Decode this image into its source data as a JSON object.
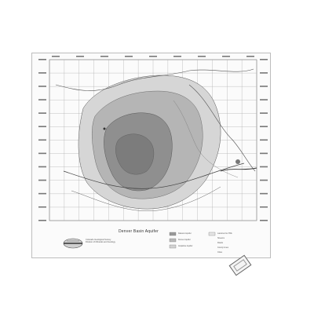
{
  "map": {
    "title": "Denver Basin Aquifer",
    "publisher_line1": "Colorado Geological Survey",
    "publisher_line2": "Division of Minerals and Geology",
    "logo_icon": "state-seal-icon",
    "stamp_icon": "stamp-icon"
  },
  "legend": {
    "items": [
      {
        "label": "Dawson Aquifer",
        "color": "#9a9a9a"
      },
      {
        "label": "Denver Aquifer",
        "color": "#b9b9b9"
      },
      {
        "label": "Arapahoe Aquifer",
        "color": "#d2d2d2"
      },
      {
        "label": "Laramie-Fox Hills",
        "color": "#e4e4e4"
      },
      {
        "label": "Streams",
        "color": "#777777"
      },
      {
        "label": "Roads",
        "color": "#444444"
      },
      {
        "label": "County Lines",
        "color": "#999999"
      },
      {
        "label": "Cities",
        "color": "#333333"
      }
    ]
  },
  "colors": {
    "paper": "#fbfbfb",
    "grid": "#a8a8a8",
    "aquifer_dark": "#8f8f8f",
    "aquifer_mid": "#b5b5b5",
    "aquifer_light": "#d6d6d6"
  }
}
